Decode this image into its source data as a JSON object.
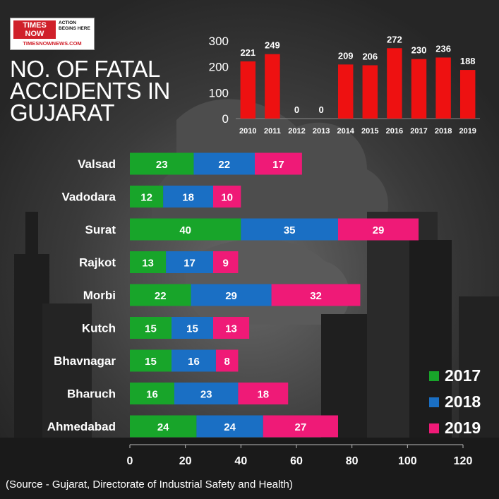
{
  "logo": {
    "brand_line1": "TIMES",
    "brand_line2": "NOW",
    "tagline": "ACTION BEGINS HERE",
    "url": "TIMESNOWNEWS.COM"
  },
  "title": "NO. OF FATAL ACCIDENTS IN GUJARAT",
  "source": "(Source - Gujarat, Directorate of Industrial Safety and Health)",
  "colors": {
    "2017": "#18a52a",
    "2018": "#1a6fc4",
    "2019": "#ef1a77",
    "bar_top": "#ee1111"
  },
  "chart_data": [
    {
      "type": "bar",
      "categories": [
        "2010",
        "2011",
        "2012",
        "2013",
        "2014",
        "2015",
        "2016",
        "2017",
        "2018",
        "2019"
      ],
      "values": [
        221,
        249,
        0,
        0,
        209,
        206,
        272,
        230,
        236,
        188
      ],
      "title": "NO. OF FATAL ACCIDENTS IN GUJARAT",
      "xlabel": "",
      "ylabel": "",
      "ylim": [
        0,
        300
      ],
      "yticks": [
        0,
        100,
        200,
        300
      ],
      "grid": false
    },
    {
      "type": "bar",
      "orientation": "horizontal",
      "stacked": true,
      "categories": [
        "Valsad",
        "Vadodara",
        "Surat",
        "Rajkot",
        "Morbi",
        "Kutch",
        "Bhavnagar",
        "Bharuch",
        "Ahmedabad"
      ],
      "series": [
        {
          "name": "2017",
          "values": [
            23,
            12,
            40,
            13,
            22,
            15,
            15,
            16,
            24
          ]
        },
        {
          "name": "2018",
          "values": [
            22,
            18,
            35,
            17,
            29,
            15,
            16,
            23,
            24
          ]
        },
        {
          "name": "2019",
          "values": [
            17,
            10,
            29,
            9,
            32,
            13,
            8,
            18,
            27
          ]
        }
      ],
      "xlim": [
        0,
        120
      ],
      "xticks": [
        0,
        20,
        40,
        60,
        80,
        100,
        120
      ],
      "legend": "bottom-right",
      "grid": false
    }
  ]
}
